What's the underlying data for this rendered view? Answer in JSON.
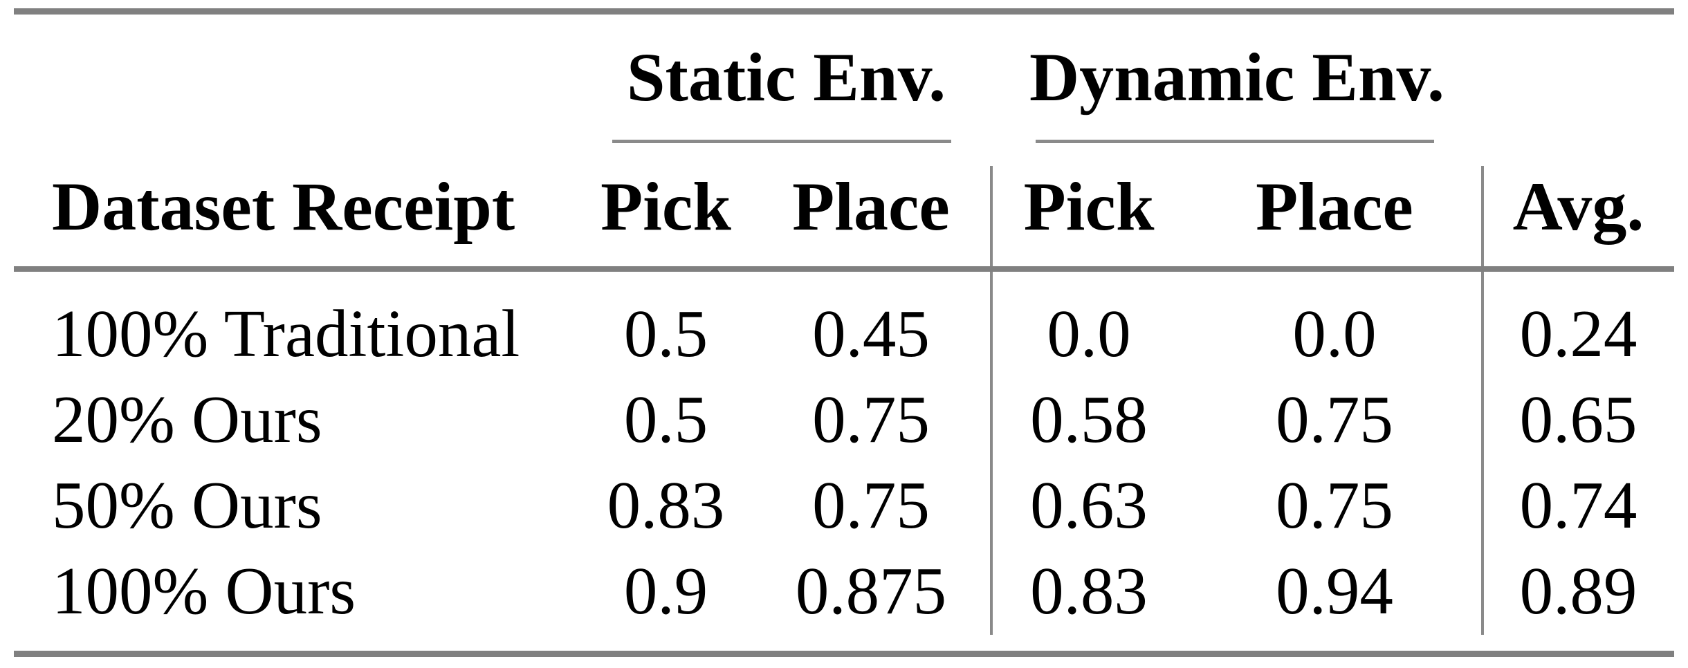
{
  "table": {
    "group_headers": [
      {
        "label": "Static Env."
      },
      {
        "label": "Dynamic Env."
      }
    ],
    "columns": {
      "dataset": "Dataset Receipt",
      "static_pick": "Pick",
      "static_place": "Place",
      "dynamic_pick": "Pick",
      "dynamic_place": "Place",
      "avg": "Avg."
    },
    "rows": [
      {
        "dataset": "100% Traditional",
        "static_pick": "0.5",
        "static_place": "0.45",
        "dynamic_pick": "0.0",
        "dynamic_place": "0.0",
        "avg": "0.24"
      },
      {
        "dataset": "20% Ours",
        "static_pick": "0.5",
        "static_place": "0.75",
        "dynamic_pick": "0.58",
        "dynamic_place": "0.75",
        "avg": "0.65"
      },
      {
        "dataset": "50% Ours",
        "static_pick": "0.83",
        "static_place": "0.75",
        "dynamic_pick": "0.63",
        "dynamic_place": "0.75",
        "avg": "0.74"
      },
      {
        "dataset": "100% Ours",
        "static_pick": "0.9",
        "static_place": "0.875",
        "dynamic_pick": "0.83",
        "dynamic_place": "0.94",
        "avg": "0.89"
      }
    ],
    "rule_color": "#808080"
  },
  "chart_data": {
    "type": "table",
    "title": "",
    "columns": [
      "Dataset Receipt",
      "Static Env. Pick",
      "Static Env. Place",
      "Dynamic Env. Pick",
      "Dynamic Env. Place",
      "Avg."
    ],
    "rows": [
      [
        "100% Traditional",
        0.5,
        0.45,
        0.0,
        0.0,
        0.24
      ],
      [
        "20% Ours",
        0.5,
        0.75,
        0.58,
        0.75,
        0.65
      ],
      [
        "50% Ours",
        0.83,
        0.75,
        0.63,
        0.75,
        0.74
      ],
      [
        "100% Ours",
        0.9,
        0.875,
        0.83,
        0.94,
        0.89
      ]
    ]
  }
}
